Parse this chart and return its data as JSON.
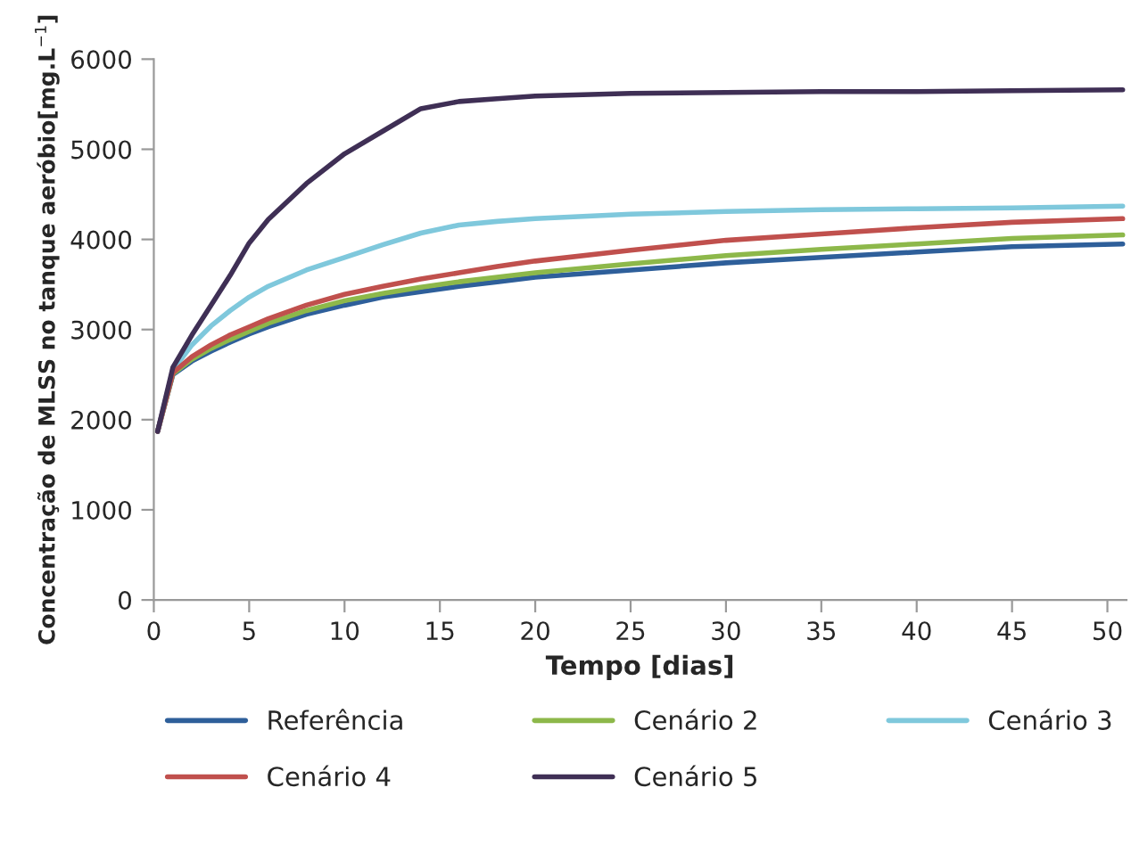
{
  "chart_data": {
    "type": "line",
    "xlabel": "Tempo [dias]",
    "ylabel": "Concentração de MLSS no tanque aeróbio[mg.L$^{−1}$]",
    "x": [
      0.2,
      1,
      2,
      3,
      4,
      5,
      6,
      8,
      10,
      12,
      14,
      16,
      18,
      20,
      25,
      30,
      35,
      40,
      45,
      50.8
    ],
    "xlim": [
      0,
      51
    ],
    "xticks": [
      0,
      5,
      10,
      15,
      20,
      25,
      30,
      35,
      40,
      45,
      50
    ],
    "ylim": [
      0,
      6000
    ],
    "yticks": [
      0,
      1000,
      2000,
      3000,
      4000,
      5000,
      6000
    ],
    "grid": false,
    "legend": "bottom",
    "marker": "none",
    "line_style": "solid",
    "series": [
      {
        "name": "Referência",
        "color": "#2e5f9a",
        "values": [
          1870,
          2500,
          2650,
          2760,
          2860,
          2950,
          3030,
          3170,
          3270,
          3360,
          3420,
          3480,
          3530,
          3580,
          3660,
          3740,
          3800,
          3860,
          3920,
          3950
        ]
      },
      {
        "name": "Cenário 2",
        "color": "#8db84a",
        "values": [
          1870,
          2510,
          2670,
          2790,
          2890,
          2980,
          3070,
          3210,
          3320,
          3400,
          3470,
          3530,
          3580,
          3630,
          3730,
          3820,
          3890,
          3950,
          4010,
          4050
        ]
      },
      {
        "name": "Cenário 3",
        "color": "#7fc8dc",
        "values": [
          1870,
          2550,
          2830,
          3040,
          3210,
          3360,
          3480,
          3660,
          3800,
          3940,
          4070,
          4160,
          4200,
          4230,
          4280,
          4310,
          4330,
          4340,
          4350,
          4370
        ]
      },
      {
        "name": "Cenário 4",
        "color": "#c0504d",
        "values": [
          1870,
          2520,
          2700,
          2830,
          2940,
          3030,
          3120,
          3270,
          3390,
          3480,
          3560,
          3630,
          3700,
          3760,
          3880,
          3990,
          4060,
          4130,
          4190,
          4230
        ]
      },
      {
        "name": "Cenário 5",
        "color": "#3f2f55",
        "values": [
          1870,
          2580,
          2940,
          3270,
          3600,
          3960,
          4220,
          4620,
          4950,
          5200,
          5450,
          5530,
          5560,
          5590,
          5620,
          5630,
          5640,
          5640,
          5650,
          5660
        ]
      }
    ]
  }
}
